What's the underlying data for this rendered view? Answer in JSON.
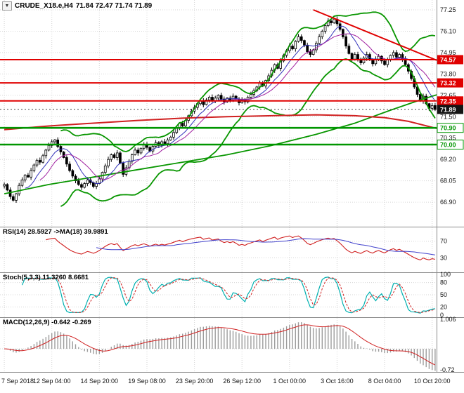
{
  "header": {
    "dropdown_icon": "▼",
    "title_symbol": "CRUDE_X18.e,H4",
    "title_ohlc": "71.84 72.47 71.74 71.89"
  },
  "colors": {
    "background": "#ffffff",
    "grid": "#d6d6d6",
    "separator": "#8a8a8a",
    "candle_border": "#000000",
    "candle_up_fill": "#ffffff",
    "candle_down_fill": "#000000",
    "bollinger": "#089600",
    "ma_fast_blue": "#3333bb",
    "ma_mid_purple": "#a020a0",
    "ma_slow_red": "#d02020",
    "level_red": "#e00000",
    "level_green": "#009600",
    "current_badge_bg": "#141414",
    "badge_text": "#ffffff",
    "trendline": "#e00000",
    "rsi_line": "#d02020",
    "rsi_ma": "#4040cc",
    "stoch_k": "#00b0b0",
    "stoch_d": "#d02020",
    "macd_hist": "#9c9c9c",
    "macd_signal": "#d02020",
    "axis_text": "#111111"
  },
  "chart_data": {
    "type": "candlestick",
    "symbol": "CRUDE_X18.e",
    "timeframe": "H4",
    "last_quote": {
      "open": 71.84,
      "high": 72.47,
      "low": 71.74,
      "close": 71.89
    },
    "x_labels": [
      "7 Sep 2018",
      "12 Sep 04:00",
      "14 Sep 20:00",
      "19 Sep 08:00",
      "23 Sep 20:00",
      "26 Sep 12:00",
      "1 Oct 00:00",
      "3 Oct 16:00",
      "8 Oct 04:00",
      "10 Oct 20:00"
    ],
    "x_label_bars": [
      0,
      16,
      32,
      48,
      64,
      80,
      96,
      112,
      128,
      144
    ],
    "closes": [
      67.85,
      67.55,
      67.2,
      67.0,
      67.35,
      67.8,
      68.1,
      68.35,
      68.25,
      68.6,
      68.9,
      69.15,
      69.05,
      69.4,
      69.7,
      69.95,
      70.15,
      70.25,
      69.9,
      69.6,
      69.3,
      68.95,
      68.6,
      68.3,
      68.05,
      67.85,
      67.7,
      67.9,
      68.1,
      67.95,
      67.75,
      67.9,
      68.15,
      68.5,
      68.85,
      69.2,
      69.45,
      69.3,
      69.55,
      69.0,
      68.4,
      68.75,
      69.1,
      69.45,
      69.7,
      69.55,
      69.8,
      70.0,
      69.85,
      69.65,
      69.9,
      70.1,
      69.95,
      70.15,
      70.05,
      70.25,
      70.4,
      70.65,
      70.9,
      71.15,
      71.0,
      71.3,
      71.55,
      71.8,
      72.0,
      72.2,
      72.35,
      72.15,
      72.4,
      72.55,
      72.35,
      72.5,
      72.65,
      72.45,
      72.3,
      72.5,
      72.4,
      72.6,
      72.45,
      72.25,
      72.4,
      72.3,
      72.55,
      72.7,
      72.9,
      73.1,
      73.3,
      73.15,
      73.45,
      73.7,
      74.0,
      74.3,
      74.1,
      74.5,
      74.8,
      75.05,
      75.3,
      75.15,
      75.55,
      75.8,
      75.6,
      75.35,
      75.0,
      74.85,
      75.1,
      75.45,
      75.8,
      76.1,
      76.4,
      76.65,
      76.55,
      76.75,
      76.5,
      76.2,
      75.8,
      75.3,
      74.9,
      74.6,
      74.85,
      74.6,
      74.4,
      74.65,
      74.85,
      74.55,
      74.35,
      74.6,
      74.75,
      74.5,
      74.3,
      74.55,
      74.8,
      74.95,
      74.7,
      74.85,
      74.6,
      74.3,
      73.95,
      73.55,
      73.1,
      72.7,
      72.35,
      72.6,
      72.2,
      71.95,
      72.1,
      71.89
    ],
    "main_panel": {
      "y_ticks": [
        77.25,
        76.1,
        74.95,
        73.8,
        72.65,
        71.5,
        70.35,
        69.2,
        68.05,
        66.9
      ],
      "y_max": 77.78,
      "y_min": 65.58,
      "levels": [
        {
          "price": 74.57,
          "label": "74.57",
          "type": "resistance"
        },
        {
          "price": 73.32,
          "label": "73.32",
          "type": "resistance"
        },
        {
          "price": 72.35,
          "label": "72.35",
          "type": "resistance"
        },
        {
          "price": 71.89,
          "label": "71.89",
          "type": "current"
        },
        {
          "price": 70.9,
          "label": "70.90",
          "type": "support"
        },
        {
          "price": 70.0,
          "label": "70.00",
          "type": "support"
        }
      ],
      "trendline": {
        "bar1": 104,
        "price1": 77.25,
        "bar2": 156,
        "price2": 73.85
      },
      "ma_trend_red": [
        [
          0,
          70.8
        ],
        [
          15,
          71.0
        ],
        [
          30,
          71.15
        ],
        [
          45,
          71.3
        ],
        [
          60,
          71.42
        ],
        [
          75,
          71.5
        ],
        [
          90,
          71.55
        ],
        [
          105,
          71.6
        ],
        [
          118,
          71.55
        ],
        [
          128,
          71.45
        ],
        [
          136,
          71.25
        ],
        [
          146,
          70.85
        ],
        [
          156,
          70.35
        ]
      ],
      "ma_trend_green": [
        [
          0,
          67.35
        ],
        [
          15,
          67.85
        ],
        [
          30,
          68.25
        ],
        [
          45,
          68.65
        ],
        [
          60,
          69.05
        ],
        [
          75,
          69.45
        ],
        [
          90,
          69.95
        ],
        [
          105,
          70.55
        ],
        [
          118,
          71.15
        ],
        [
          130,
          71.85
        ],
        [
          140,
          72.4
        ],
        [
          146,
          72.7
        ],
        [
          156,
          73.3
        ]
      ]
    },
    "indicators": {
      "rsi": {
        "label": "RSI(14) 28.5927 ->MA(18) 39.9891",
        "period": 14,
        "ma_period": 18,
        "y_ticks": [
          70,
          30
        ],
        "last": 28.5927,
        "ma_last": 39.9891
      },
      "stoch": {
        "label": "Stoch(5,3,3) 11.3260 8.6681",
        "k": 5,
        "slowing": 3,
        "d": 3,
        "y_ticks": [
          100,
          80,
          50,
          20,
          0
        ],
        "last_k": 11.326,
        "last_d": 8.6681
      },
      "macd": {
        "label": "MACD(12,26,9) -0.642 -0.269",
        "fast": 12,
        "slow": 26,
        "signal": 9,
        "y_tick_labels": [
          "1.006",
          "-0.72"
        ],
        "y_tick_values": [
          1.006,
          -0.72
        ],
        "y_max": 1.006,
        "y_min": -0.72,
        "last": -0.642,
        "signal_last": -0.269
      }
    }
  }
}
